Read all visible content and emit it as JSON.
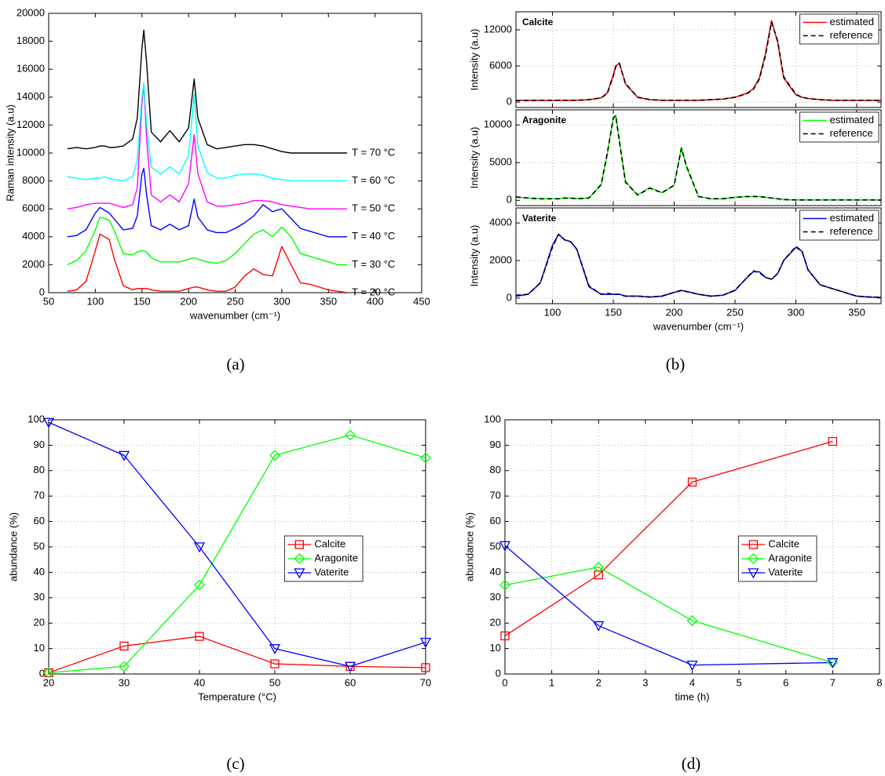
{
  "chart_data": [
    {
      "type": "line",
      "caption": "(a)",
      "xlabel": "wavenumber (cm⁻¹)",
      "ylabel": "Raman intensity (a.u)",
      "xlim": [
        50,
        450
      ],
      "xticks": [
        50,
        100,
        150,
        200,
        250,
        300,
        350,
        400,
        450
      ],
      "ylim": [
        0,
        20000
      ],
      "yticks": [
        0,
        2000,
        4000,
        6000,
        8000,
        10000,
        12000,
        14000,
        16000,
        18000,
        20000
      ],
      "grid": false,
      "legend": "inline",
      "x": [
        70,
        80,
        90,
        100,
        105,
        110,
        115,
        120,
        130,
        140,
        145,
        150,
        152,
        155,
        160,
        170,
        180,
        190,
        200,
        206,
        210,
        220,
        230,
        240,
        250,
        260,
        270,
        280,
        290,
        300,
        310,
        320,
        330,
        340,
        350,
        360,
        370
      ],
      "series": [
        {
          "name": "T = 20 °C",
          "color": "#ff0000",
          "values": [
            100,
            200,
            800,
            3000,
            4200,
            4000,
            3800,
            2500,
            500,
            200,
            300,
            300,
            300,
            300,
            200,
            100,
            100,
            100,
            300,
            400,
            400,
            200,
            100,
            100,
            400,
            1200,
            1700,
            1300,
            1200,
            3300,
            2000,
            700,
            600,
            400,
            200,
            100,
            0
          ]
        },
        {
          "name": "T = 30 °C",
          "color": "#00ff00",
          "values": [
            2000,
            2300,
            3000,
            4500,
            5400,
            5300,
            5200,
            4500,
            2800,
            2700,
            2900,
            3000,
            3000,
            2900,
            2500,
            2200,
            2200,
            2200,
            2400,
            2500,
            2400,
            2200,
            2100,
            2300,
            2800,
            3500,
            4200,
            4500,
            4000,
            4700,
            4000,
            2800,
            2600,
            2400,
            2200,
            2000,
            2000
          ]
        },
        {
          "name": "T = 40 °C",
          "color": "#0000ff",
          "values": [
            4000,
            4100,
            4500,
            5700,
            6100,
            5900,
            5700,
            5300,
            4500,
            4600,
            5500,
            8500,
            8900,
            7000,
            4800,
            4500,
            4900,
            4500,
            4800,
            6700,
            5400,
            4500,
            4300,
            4300,
            4600,
            5000,
            5500,
            6300,
            5800,
            6000,
            5300,
            4600,
            4400,
            4200,
            4000,
            4000,
            4000
          ]
        },
        {
          "name": "T = 50 °C",
          "color": "#ff00ff",
          "values": [
            6000,
            6100,
            6300,
            6400,
            6400,
            6400,
            6400,
            6300,
            6100,
            6300,
            7500,
            13500,
            15000,
            11000,
            7000,
            6500,
            7000,
            6500,
            7800,
            11300,
            8500,
            6500,
            6200,
            6200,
            6300,
            6400,
            6600,
            6600,
            6500,
            6300,
            6200,
            6100,
            6000,
            6000,
            6000,
            6000,
            6000
          ]
        },
        {
          "name": "T = 60 °C",
          "color": "#00ffff",
          "values": [
            8300,
            8200,
            8100,
            8200,
            8200,
            8300,
            8200,
            8100,
            8000,
            8300,
            9500,
            14000,
            15000,
            12000,
            9000,
            8500,
            9000,
            8500,
            9800,
            14200,
            10500,
            8600,
            8200,
            8200,
            8400,
            8500,
            8500,
            8400,
            8200,
            8100,
            8000,
            8000,
            8000,
            8000,
            8000,
            8000,
            8000
          ]
        },
        {
          "name": "T = 70 °C",
          "color": "#000000",
          "values": [
            10300,
            10400,
            10300,
            10400,
            10500,
            10500,
            10400,
            10400,
            10500,
            11000,
            12500,
            17500,
            18800,
            16500,
            11500,
            10800,
            11600,
            10800,
            11800,
            15300,
            12500,
            10600,
            10300,
            10400,
            10500,
            10600,
            10600,
            10500,
            10300,
            10100,
            10000,
            10000,
            10000,
            10000,
            10000,
            10000,
            10000
          ]
        }
      ]
    },
    {
      "type": "line",
      "caption": "(b)",
      "xlabel": "wavenumber (cm⁻¹)",
      "x": [
        70,
        80,
        90,
        100,
        105,
        110,
        115,
        120,
        130,
        140,
        145,
        150,
        152,
        155,
        160,
        170,
        180,
        190,
        200,
        206,
        210,
        220,
        230,
        240,
        250,
        260,
        265,
        270,
        275,
        280,
        285,
        290,
        300,
        305,
        310,
        320,
        330,
        340,
        350,
        360,
        370
      ],
      "subplots": [
        {
          "title": "Calcite",
          "ylabel": "Intensity (a.u)",
          "xlim": [
            70,
            370
          ],
          "xticks": [
            100,
            150,
            200,
            250,
            300,
            350
          ],
          "show_xtick_labels": false,
          "ylim": [
            -900,
            15000
          ],
          "yticks": [
            0,
            6000,
            12000
          ],
          "grid": true,
          "legend": "upper right",
          "series": [
            {
              "name": "estimated",
              "color": "#ff0000",
              "linestyle": "solid",
              "values": [
                300,
                300,
                300,
                300,
                300,
                300,
                300,
                300,
                400,
                700,
                1500,
                4500,
                6000,
                6500,
                3000,
                800,
                400,
                300,
                300,
                300,
                300,
                300,
                400,
                500,
                800,
                1500,
                2200,
                4000,
                8000,
                13500,
                10000,
                4000,
                1200,
                800,
                600,
                400,
                300,
                300,
                300,
                300,
                300
              ]
            },
            {
              "name": "reference",
              "color": "#000000",
              "linestyle": "dashed",
              "values": [
                250,
                250,
                300,
                300,
                300,
                300,
                300,
                300,
                400,
                700,
                1400,
                4300,
                5900,
                6400,
                3100,
                800,
                400,
                300,
                300,
                300,
                300,
                300,
                400,
                500,
                800,
                1400,
                2100,
                3800,
                7700,
                13300,
                10200,
                4200,
                1300,
                800,
                600,
                400,
                300,
                300,
                300,
                300,
                300
              ]
            }
          ]
        },
        {
          "title": "Aragonite",
          "ylabel": "Intensity (a.u)",
          "xlim": [
            70,
            370
          ],
          "xticks": [
            100,
            150,
            200,
            250,
            300,
            350
          ],
          "show_xtick_labels": false,
          "ylim": [
            -700,
            12000
          ],
          "yticks": [
            0,
            5000,
            10000
          ],
          "grid": true,
          "legend": "upper right",
          "series": [
            {
              "name": "estimated",
              "color": "#00ff00",
              "linestyle": "solid",
              "values": [
                400,
                300,
                200,
                200,
                200,
                300,
                300,
                200,
                300,
                2000,
                6000,
                11000,
                11300,
                8000,
                2500,
                700,
                1700,
                1000,
                2000,
                7000,
                4500,
                500,
                200,
                200,
                400,
                500,
                500,
                500,
                400,
                300,
                200,
                100,
                50,
                50,
                50,
                50,
                50,
                50,
                50,
                50,
                50
              ]
            },
            {
              "name": "reference",
              "color": "#000000",
              "linestyle": "dashed",
              "values": [
                450,
                300,
                200,
                200,
                200,
                300,
                300,
                200,
                300,
                2100,
                6200,
                10900,
                11200,
                7800,
                2400,
                700,
                1600,
                1000,
                2000,
                6900,
                4600,
                500,
                200,
                200,
                400,
                500,
                500,
                500,
                400,
                300,
                200,
                100,
                50,
                50,
                50,
                50,
                50,
                50,
                50,
                50,
                50
              ]
            }
          ]
        },
        {
          "title": "Vaterite",
          "ylabel": "Intensity (a.u)",
          "xlim": [
            70,
            370
          ],
          "xticks": [
            100,
            150,
            200,
            250,
            300,
            350
          ],
          "show_xtick_labels": true,
          "ylim": [
            -300,
            4800
          ],
          "yticks": [
            0,
            2000,
            4000
          ],
          "grid": true,
          "legend": "upper right",
          "series": [
            {
              "name": "estimated",
              "color": "#0000ff",
              "linestyle": "solid",
              "values": [
                100,
                200,
                800,
                2800,
                3400,
                3100,
                3000,
                2600,
                600,
                200,
                200,
                200,
                200,
                200,
                100,
                100,
                50,
                100,
                300,
                400,
                350,
                200,
                100,
                150,
                400,
                1100,
                1400,
                1400,
                1100,
                1000,
                1300,
                2000,
                2700,
                2500,
                1500,
                700,
                500,
                300,
                100,
                50,
                30
              ]
            },
            {
              "name": "reference",
              "color": "#000000",
              "linestyle": "dashed",
              "values": [
                150,
                200,
                800,
                2700,
                3400,
                3100,
                3000,
                2600,
                650,
                200,
                250,
                200,
                200,
                200,
                100,
                100,
                60,
                100,
                300,
                420,
                350,
                200,
                100,
                150,
                420,
                1100,
                1450,
                1350,
                1100,
                1000,
                1300,
                2000,
                2750,
                2500,
                1500,
                700,
                500,
                300,
                100,
                60,
                40
              ]
            }
          ]
        }
      ]
    },
    {
      "type": "line",
      "caption": "(c)",
      "xlabel": "Temperature (°C)",
      "ylabel": "abundance (%)",
      "xlim": [
        20,
        70
      ],
      "xticks": [
        20,
        30,
        40,
        50,
        60,
        70
      ],
      "ylim": [
        0,
        100
      ],
      "yticks": [
        0,
        10,
        20,
        30,
        40,
        50,
        60,
        70,
        80,
        90,
        100
      ],
      "grid": true,
      "legend": "east",
      "x": [
        20,
        30,
        40,
        50,
        60,
        70
      ],
      "series": [
        {
          "name": "Calcite",
          "color": "#ff0000",
          "marker": "square",
          "values": [
            0.5,
            11,
            14.8,
            4,
            3,
            2.5
          ]
        },
        {
          "name": "Aragonite",
          "color": "#00ff00",
          "marker": "diamond",
          "values": [
            0.5,
            3,
            35,
            86,
            94,
            85
          ]
        },
        {
          "name": "Vaterite",
          "color": "#0000ff",
          "marker": "triangle-down",
          "values": [
            99,
            86,
            50,
            10,
            3,
            12.5
          ]
        }
      ]
    },
    {
      "type": "line",
      "caption": "(d)",
      "xlabel": "time (h)",
      "ylabel": "abundance (%)",
      "xlim": [
        0,
        8
      ],
      "xticks": [
        0,
        1,
        2,
        3,
        4,
        5,
        6,
        7,
        8
      ],
      "ylim": [
        0,
        100
      ],
      "yticks": [
        0,
        10,
        20,
        30,
        40,
        50,
        60,
        70,
        80,
        90,
        100
      ],
      "grid": true,
      "legend": "east",
      "x": [
        0,
        2,
        4,
        7
      ],
      "series": [
        {
          "name": "Calcite",
          "color": "#ff0000",
          "marker": "square",
          "values": [
            15,
            39,
            75.5,
            91.5
          ]
        },
        {
          "name": "Aragonite",
          "color": "#00ff00",
          "marker": "diamond",
          "values": [
            35,
            42,
            21,
            4.5
          ]
        },
        {
          "name": "Vaterite",
          "color": "#0000ff",
          "marker": "triangle-down",
          "values": [
            50.5,
            19,
            3.5,
            4.5
          ]
        }
      ]
    }
  ]
}
